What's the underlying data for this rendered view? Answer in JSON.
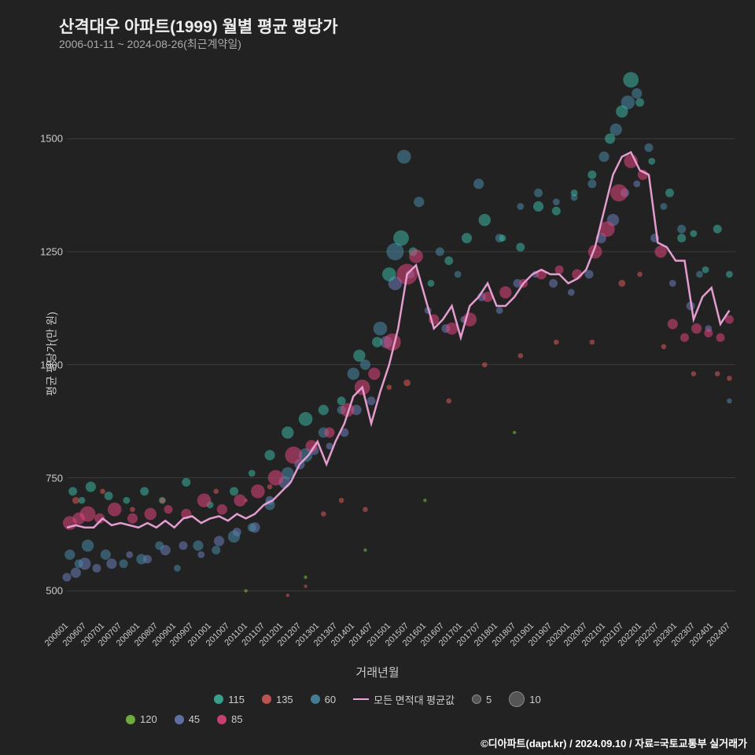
{
  "title": "산격대우 아파트(1999) 월별 평균 평당가",
  "subtitle": "2006-01-11 ~ 2024-08-26(최근계약일)",
  "ylabel": "평균 평당가(만 원)",
  "xlabel": "거래년월",
  "footer": "©디아파트(dapt.kr) / 2024.09.10 / 자료=국토교통부 실거래가",
  "chart": {
    "type": "scatter_line",
    "background_color": "#222222",
    "grid_color": "#444444",
    "text_color": "#cccccc",
    "title_color": "#eeeeee",
    "title_fontsize": 21,
    "subtitle_fontsize": 14,
    "label_fontsize": 14,
    "tick_fontsize": 12,
    "ylim": [
      450,
      1650
    ],
    "yticks": [
      500,
      750,
      1000,
      1250,
      1500
    ],
    "xlim": [
      0,
      224
    ],
    "xticks_labels": [
      "200601",
      "200607",
      "200701",
      "200707",
      "200801",
      "200807",
      "200901",
      "200907",
      "201001",
      "201007",
      "201101",
      "201107",
      "201201",
      "201207",
      "201301",
      "201307",
      "201401",
      "201407",
      "201501",
      "201507",
      "201601",
      "201607",
      "201701",
      "201707",
      "201801",
      "201807",
      "201901",
      "201907",
      "202001",
      "202007",
      "202101",
      "202107",
      "202201",
      "202207",
      "202301",
      "202307",
      "202401",
      "202407"
    ],
    "xticks_idx": [
      0,
      6,
      12,
      18,
      24,
      30,
      36,
      42,
      48,
      54,
      60,
      66,
      72,
      78,
      84,
      90,
      96,
      102,
      108,
      114,
      120,
      126,
      132,
      138,
      144,
      150,
      156,
      162,
      168,
      174,
      180,
      186,
      192,
      198,
      204,
      210,
      216,
      222
    ],
    "series_colors": {
      "115": "#3db5a0",
      "120": "#7fc241",
      "135": "#d85a5a",
      "45": "#6b7db8",
      "60": "#4a8ba8",
      "85": "#e0457e",
      "avg": "#eda4d8"
    },
    "legend_items": [
      {
        "label": "115",
        "color": "#3db5a0",
        "type": "dot"
      },
      {
        "label": "135",
        "color": "#d85a5a",
        "type": "dot"
      },
      {
        "label": "60",
        "color": "#4a8ba8",
        "type": "dot"
      },
      {
        "label": "모든 면적대 평균값",
        "color": "#eda4d8",
        "type": "line"
      },
      {
        "label": "120",
        "color": "#7fc241",
        "type": "dot"
      },
      {
        "label": "45",
        "color": "#6b7db8",
        "type": "dot"
      },
      {
        "label": "85",
        "color": "#e0457e",
        "type": "dot"
      }
    ],
    "size_legend": [
      {
        "label": "5",
        "radius": 6
      },
      {
        "label": "10",
        "radius": 10
      }
    ],
    "avg_line": [
      [
        0,
        640
      ],
      [
        3,
        645
      ],
      [
        6,
        640
      ],
      [
        9,
        640
      ],
      [
        12,
        660
      ],
      [
        15,
        645
      ],
      [
        18,
        650
      ],
      [
        21,
        645
      ],
      [
        24,
        640
      ],
      [
        27,
        650
      ],
      [
        30,
        640
      ],
      [
        33,
        655
      ],
      [
        36,
        640
      ],
      [
        39,
        660
      ],
      [
        42,
        665
      ],
      [
        45,
        650
      ],
      [
        48,
        660
      ],
      [
        51,
        665
      ],
      [
        54,
        655
      ],
      [
        57,
        670
      ],
      [
        60,
        660
      ],
      [
        63,
        670
      ],
      [
        66,
        690
      ],
      [
        69,
        700
      ],
      [
        72,
        720
      ],
      [
        75,
        740
      ],
      [
        78,
        780
      ],
      [
        81,
        800
      ],
      [
        84,
        830
      ],
      [
        87,
        780
      ],
      [
        90,
        830
      ],
      [
        93,
        870
      ],
      [
        96,
        930
      ],
      [
        99,
        950
      ],
      [
        102,
        870
      ],
      [
        105,
        940
      ],
      [
        108,
        1000
      ],
      [
        111,
        1080
      ],
      [
        114,
        1200
      ],
      [
        117,
        1220
      ],
      [
        120,
        1150
      ],
      [
        123,
        1080
      ],
      [
        126,
        1100
      ],
      [
        129,
        1130
      ],
      [
        132,
        1060
      ],
      [
        135,
        1130
      ],
      [
        138,
        1150
      ],
      [
        141,
        1180
      ],
      [
        144,
        1130
      ],
      [
        147,
        1130
      ],
      [
        150,
        1150
      ],
      [
        153,
        1180
      ],
      [
        156,
        1200
      ],
      [
        159,
        1210
      ],
      [
        162,
        1200
      ],
      [
        165,
        1200
      ],
      [
        168,
        1180
      ],
      [
        171,
        1190
      ],
      [
        174,
        1210
      ],
      [
        177,
        1260
      ],
      [
        180,
        1340
      ],
      [
        183,
        1420
      ],
      [
        186,
        1460
      ],
      [
        189,
        1470
      ],
      [
        192,
        1430
      ],
      [
        195,
        1420
      ],
      [
        198,
        1270
      ],
      [
        201,
        1260
      ],
      [
        204,
        1230
      ],
      [
        207,
        1230
      ],
      [
        210,
        1100
      ],
      [
        213,
        1150
      ],
      [
        216,
        1170
      ],
      [
        219,
        1090
      ],
      [
        222,
        1120
      ]
    ],
    "scatter_115": [
      [
        2,
        720,
        5
      ],
      [
        5,
        700,
        4
      ],
      [
        8,
        730,
        6
      ],
      [
        14,
        710,
        5
      ],
      [
        20,
        700,
        4
      ],
      [
        26,
        720,
        5
      ],
      [
        32,
        700,
        4
      ],
      [
        40,
        740,
        5
      ],
      [
        48,
        690,
        4
      ],
      [
        56,
        720,
        5
      ],
      [
        62,
        760,
        4
      ],
      [
        68,
        800,
        6
      ],
      [
        74,
        850,
        7
      ],
      [
        80,
        880,
        8
      ],
      [
        86,
        900,
        6
      ],
      [
        92,
        920,
        5
      ],
      [
        98,
        1020,
        7
      ],
      [
        104,
        1050,
        6
      ],
      [
        108,
        1200,
        8
      ],
      [
        112,
        1280,
        9
      ],
      [
        116,
        1250,
        5
      ],
      [
        122,
        1180,
        4
      ],
      [
        128,
        1230,
        5
      ],
      [
        134,
        1280,
        6
      ],
      [
        140,
        1320,
        7
      ],
      [
        146,
        1280,
        4
      ],
      [
        152,
        1260,
        5
      ],
      [
        158,
        1350,
        6
      ],
      [
        164,
        1340,
        5
      ],
      [
        170,
        1380,
        4
      ],
      [
        176,
        1420,
        5
      ],
      [
        182,
        1500,
        6
      ],
      [
        186,
        1560,
        7
      ],
      [
        189,
        1630,
        9
      ],
      [
        192,
        1580,
        5
      ],
      [
        196,
        1450,
        4
      ],
      [
        202,
        1380,
        5
      ],
      [
        206,
        1280,
        5
      ],
      [
        210,
        1290,
        4
      ],
      [
        214,
        1210,
        4
      ],
      [
        218,
        1300,
        5
      ],
      [
        222,
        1200,
        4
      ]
    ],
    "scatter_60": [
      [
        1,
        580,
        6
      ],
      [
        4,
        560,
        5
      ],
      [
        7,
        600,
        7
      ],
      [
        13,
        580,
        6
      ],
      [
        19,
        560,
        5
      ],
      [
        25,
        570,
        6
      ],
      [
        31,
        600,
        5
      ],
      [
        37,
        550,
        4
      ],
      [
        44,
        600,
        6
      ],
      [
        50,
        590,
        5
      ],
      [
        56,
        620,
        7
      ],
      [
        62,
        640,
        5
      ],
      [
        68,
        690,
        6
      ],
      [
        74,
        760,
        7
      ],
      [
        80,
        800,
        8
      ],
      [
        86,
        850,
        6
      ],
      [
        92,
        900,
        5
      ],
      [
        96,
        980,
        7
      ],
      [
        100,
        1000,
        6
      ],
      [
        105,
        1080,
        8
      ],
      [
        110,
        1250,
        10
      ],
      [
        113,
        1460,
        8
      ],
      [
        118,
        1360,
        6
      ],
      [
        125,
        1250,
        5
      ],
      [
        131,
        1200,
        4
      ],
      [
        138,
        1400,
        6
      ],
      [
        145,
        1280,
        5
      ],
      [
        152,
        1350,
        4
      ],
      [
        158,
        1380,
        5
      ],
      [
        164,
        1360,
        4
      ],
      [
        170,
        1370,
        4
      ],
      [
        176,
        1400,
        5
      ],
      [
        180,
        1460,
        6
      ],
      [
        184,
        1520,
        7
      ],
      [
        188,
        1580,
        8
      ],
      [
        191,
        1600,
        6
      ],
      [
        195,
        1480,
        5
      ],
      [
        200,
        1350,
        4
      ],
      [
        206,
        1300,
        5
      ],
      [
        212,
        1200,
        4
      ],
      [
        222,
        920,
        3
      ]
    ],
    "scatter_45": [
      [
        0,
        530,
        5
      ],
      [
        3,
        540,
        6
      ],
      [
        6,
        560,
        7
      ],
      [
        10,
        550,
        5
      ],
      [
        15,
        560,
        6
      ],
      [
        21,
        580,
        4
      ],
      [
        27,
        570,
        5
      ],
      [
        33,
        590,
        6
      ],
      [
        39,
        600,
        5
      ],
      [
        45,
        580,
        4
      ],
      [
        51,
        610,
        6
      ],
      [
        57,
        630,
        5
      ],
      [
        63,
        640,
        6
      ],
      [
        68,
        700,
        5
      ],
      [
        73,
        740,
        7
      ],
      [
        78,
        780,
        6
      ],
      [
        83,
        810,
        5
      ],
      [
        88,
        820,
        4
      ],
      [
        93,
        850,
        5
      ],
      [
        97,
        900,
        6
      ],
      [
        102,
        920,
        5
      ],
      [
        107,
        1050,
        7
      ],
      [
        110,
        1180,
        8
      ],
      [
        115,
        1200,
        5
      ],
      [
        121,
        1120,
        4
      ],
      [
        127,
        1080,
        5
      ],
      [
        133,
        1100,
        4
      ],
      [
        139,
        1150,
        5
      ],
      [
        145,
        1120,
        4
      ],
      [
        151,
        1180,
        5
      ],
      [
        157,
        1200,
        4
      ],
      [
        163,
        1180,
        5
      ],
      [
        169,
        1160,
        4
      ],
      [
        175,
        1200,
        5
      ],
      [
        179,
        1280,
        6
      ],
      [
        183,
        1320,
        7
      ],
      [
        187,
        1380,
        5
      ],
      [
        191,
        1400,
        4
      ],
      [
        197,
        1280,
        5
      ],
      [
        203,
        1180,
        4
      ],
      [
        209,
        1130,
        5
      ],
      [
        215,
        1080,
        4
      ]
    ],
    "scatter_85": [
      [
        1,
        650,
        8
      ],
      [
        4,
        660,
        7
      ],
      [
        7,
        670,
        9
      ],
      [
        11,
        660,
        6
      ],
      [
        16,
        680,
        8
      ],
      [
        22,
        660,
        6
      ],
      [
        28,
        670,
        7
      ],
      [
        34,
        680,
        5
      ],
      [
        40,
        670,
        6
      ],
      [
        46,
        700,
        8
      ],
      [
        52,
        680,
        6
      ],
      [
        58,
        700,
        7
      ],
      [
        64,
        720,
        8
      ],
      [
        70,
        750,
        9
      ],
      [
        76,
        800,
        10
      ],
      [
        82,
        820,
        7
      ],
      [
        88,
        850,
        6
      ],
      [
        94,
        900,
        8
      ],
      [
        99,
        950,
        9
      ],
      [
        103,
        980,
        7
      ],
      [
        109,
        1050,
        10
      ],
      [
        114,
        1200,
        12
      ],
      [
        117,
        1240,
        8
      ],
      [
        123,
        1100,
        6
      ],
      [
        129,
        1080,
        7
      ],
      [
        135,
        1100,
        8
      ],
      [
        141,
        1150,
        6
      ],
      [
        147,
        1160,
        7
      ],
      [
        153,
        1180,
        5
      ],
      [
        159,
        1200,
        6
      ],
      [
        165,
        1210,
        5
      ],
      [
        171,
        1200,
        6
      ],
      [
        177,
        1250,
        8
      ],
      [
        181,
        1300,
        9
      ],
      [
        185,
        1380,
        10
      ],
      [
        189,
        1450,
        8
      ],
      [
        193,
        1420,
        6
      ],
      [
        199,
        1250,
        7
      ],
      [
        203,
        1090,
        6
      ],
      [
        207,
        1060,
        5
      ],
      [
        211,
        1080,
        6
      ],
      [
        215,
        1070,
        5
      ],
      [
        219,
        1060,
        5
      ],
      [
        222,
        1100,
        5
      ]
    ],
    "scatter_135": [
      [
        3,
        700,
        4
      ],
      [
        12,
        720,
        3
      ],
      [
        22,
        680,
        3
      ],
      [
        32,
        700,
        3
      ],
      [
        50,
        720,
        3
      ],
      [
        60,
        700,
        2
      ],
      [
        68,
        730,
        3
      ],
      [
        74,
        490,
        2
      ],
      [
        80,
        510,
        2
      ],
      [
        86,
        670,
        3
      ],
      [
        92,
        700,
        3
      ],
      [
        100,
        680,
        3
      ],
      [
        108,
        950,
        3
      ],
      [
        114,
        960,
        4
      ],
      [
        128,
        920,
        3
      ],
      [
        140,
        1000,
        3
      ],
      [
        152,
        1020,
        3
      ],
      [
        164,
        1050,
        3
      ],
      [
        176,
        1050,
        3
      ],
      [
        186,
        1180,
        4
      ],
      [
        192,
        1200,
        3
      ],
      [
        200,
        1040,
        3
      ],
      [
        210,
        980,
        3
      ],
      [
        218,
        980,
        3
      ],
      [
        222,
        970,
        3
      ]
    ],
    "scatter_120": [
      [
        60,
        500,
        2
      ],
      [
        80,
        530,
        2
      ],
      [
        100,
        590,
        2
      ],
      [
        120,
        700,
        2
      ],
      [
        150,
        850,
        2
      ]
    ]
  }
}
